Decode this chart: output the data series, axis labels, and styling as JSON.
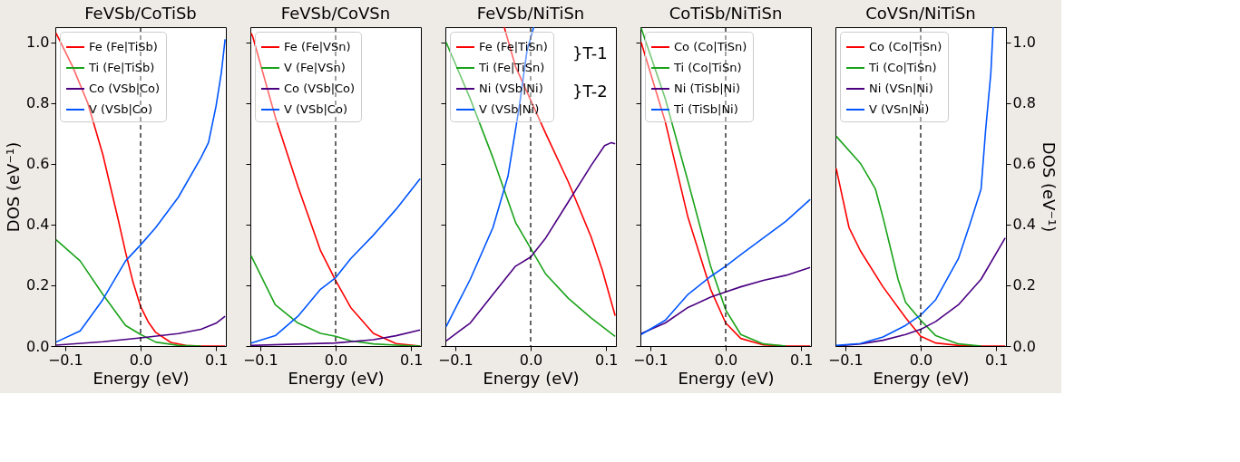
{
  "chart_data": [
    {
      "type": "line",
      "title": "FeVSb/CoTiSb",
      "xlabel": "Energy (eV)",
      "ylabel": "DOS (eV⁻¹)",
      "xlim": [
        -0.113,
        0.113
      ],
      "ylim": [
        0,
        1.05
      ],
      "xticks": [
        {
          "value": -0.1,
          "label": "−0.1"
        },
        {
          "value": 0,
          "label": "0.0"
        },
        {
          "value": 0.1,
          "label": "0.1"
        }
      ],
      "yticks": [
        {
          "value": 0,
          "label": "0.0"
        },
        0.2,
        0.4,
        0.6,
        0.8,
        {
          "value": 1,
          "label": "1.0"
        }
      ],
      "legend": "top left",
      "ref_lines": [
        {
          "axis": "x",
          "value": 0,
          "color": "#000000",
          "line_style": "dashed"
        }
      ],
      "series": [
        {
          "name": "Fe (Fe|TiSb)",
          "color": "#ff0000",
          "x": [
            -0.112,
            -0.09,
            -0.07,
            -0.05,
            -0.03,
            -0.02,
            -0.01,
            0,
            0.01,
            0.02,
            0.04,
            0.06,
            0.08,
            0.112
          ],
          "values": [
            1.03,
            0.92,
            0.8,
            0.63,
            0.42,
            0.31,
            0.21,
            0.13,
            0.08,
            0.045,
            0.012,
            0.002,
            0,
            0
          ]
        },
        {
          "name": "Ti (Fe|TiSb)",
          "color": "#1aa31a",
          "x": [
            -0.112,
            -0.08,
            -0.05,
            -0.02,
            0,
            0.02,
            0.05,
            0.08
          ],
          "values": [
            0.35,
            0.28,
            0.17,
            0.068,
            0.038,
            0.013,
            0.002,
            0
          ]
        },
        {
          "name": "Co (VSb|Co)",
          "color": "#4b0082",
          "x": [
            -0.112,
            -0.05,
            0,
            0.05,
            0.08,
            0.1,
            0.112
          ],
          "values": [
            0.003,
            0.014,
            0.027,
            0.041,
            0.055,
            0.075,
            0.098
          ]
        },
        {
          "name": "V (VSb|Co)",
          "color": "#0055ff",
          "x": [
            -0.112,
            -0.08,
            -0.05,
            -0.02,
            0,
            0.02,
            0.05,
            0.08,
            0.09,
            0.1,
            0.107,
            0.112
          ],
          "values": [
            0.013,
            0.05,
            0.153,
            0.28,
            0.333,
            0.39,
            0.49,
            0.62,
            0.67,
            0.79,
            0.9,
            1.01
          ]
        }
      ]
    },
    {
      "type": "line",
      "title": "FeVSb/CoVSn",
      "xlabel": "Energy (eV)",
      "xlim": [
        -0.113,
        0.113
      ],
      "ylim": [
        0,
        1.05
      ],
      "tick_labels": "x",
      "xticks": [
        {
          "value": -0.1,
          "label": "−0.1"
        },
        {
          "value": 0,
          "label": "0.0"
        },
        {
          "value": 0.1,
          "label": "0.1"
        }
      ],
      "yticks": [
        0,
        0.2,
        0.4,
        0.6,
        0.8,
        1
      ],
      "legend": "top left",
      "ref_lines": [
        {
          "axis": "x",
          "value": 0,
          "color": "#000000",
          "line_style": "dashed"
        }
      ],
      "series": [
        {
          "name": "Fe (Fe|VSn)",
          "color": "#ff0000",
          "x": [
            -0.112,
            -0.11,
            -0.08,
            -0.05,
            -0.02,
            0,
            0.02,
            0.05,
            0.08,
            0.112
          ],
          "values": [
            1.03,
            1.02,
            0.755,
            0.526,
            0.314,
            0.216,
            0.127,
            0.042,
            0.008,
            0
          ]
        },
        {
          "name": "V (Fe|VSn)",
          "color": "#1aa31a",
          "x": [
            -0.112,
            -0.08,
            -0.05,
            -0.02,
            0,
            0.02,
            0.05,
            0.08,
            0.112
          ],
          "values": [
            0.297,
            0.136,
            0.076,
            0.042,
            0.032,
            0.017,
            0.007,
            0.003,
            0
          ]
        },
        {
          "name": "Co (VSb|Co)",
          "color": "#4b0082",
          "x": [
            -0.112,
            0,
            0.05,
            0.08,
            0.112
          ],
          "values": [
            0.002,
            0.01,
            0.021,
            0.034,
            0.053
          ]
        },
        {
          "name": "V (VSb|Co)",
          "color": "#0055ff",
          "x": [
            -0.112,
            -0.08,
            -0.05,
            -0.02,
            0,
            0.02,
            0.05,
            0.08,
            0.112
          ],
          "values": [
            0.01,
            0.034,
            0.098,
            0.187,
            0.225,
            0.288,
            0.365,
            0.45,
            0.551
          ]
        }
      ]
    },
    {
      "type": "line",
      "title": "FeVSb/NiTiSn",
      "xlabel": "Energy (eV)",
      "xlim": [
        -0.113,
        0.113
      ],
      "ylim": [
        0,
        1.05
      ],
      "tick_labels": "x",
      "xticks": [
        {
          "value": -0.1,
          "label": "−0.1"
        },
        {
          "value": 0,
          "label": "0.0"
        },
        {
          "value": 0.1,
          "label": "0.1"
        }
      ],
      "yticks": [
        0,
        0.2,
        0.4,
        0.6,
        0.8,
        1
      ],
      "legend": "top left",
      "annotations": [
        "}T-1",
        "}T-2"
      ],
      "ref_lines": [
        {
          "axis": "x",
          "value": 0,
          "color": "#000000",
          "line_style": "dashed"
        }
      ],
      "series": [
        {
          "name": "Fe (Fe|TiSn)",
          "color": "#ff0000",
          "x": [
            -0.035,
            -0.02,
            0,
            0.02,
            0.05,
            0.08,
            0.095,
            0.112
          ],
          "values": [
            1.05,
            0.92,
            0.81,
            0.7,
            0.54,
            0.36,
            0.25,
            0.1
          ]
        },
        {
          "name": "Ti (Fe|TiSn)",
          "color": "#1aa31a",
          "x": [
            -0.112,
            -0.08,
            -0.05,
            -0.02,
            0,
            0.02,
            0.05,
            0.08,
            0.112
          ],
          "values": [
            1.0,
            0.814,
            0.62,
            0.407,
            0.322,
            0.237,
            0.157,
            0.093,
            0.032
          ]
        },
        {
          "name": "Ni (VSb|Ni)",
          "color": "#4b0082",
          "x": [
            -0.112,
            -0.08,
            -0.05,
            -0.02,
            0,
            0.02,
            0.05,
            0.08,
            0.098,
            0.107,
            0.112
          ],
          "values": [
            0.017,
            0.076,
            0.17,
            0.263,
            0.293,
            0.356,
            0.475,
            0.594,
            0.66,
            0.67,
            0.666
          ]
        },
        {
          "name": "V (VSb|Ni)",
          "color": "#0055ff",
          "x": [
            -0.112,
            -0.08,
            -0.05,
            -0.03,
            -0.015,
            -0.005,
            0.004
          ],
          "values": [
            0.064,
            0.22,
            0.39,
            0.56,
            0.79,
            0.97,
            1.05
          ]
        }
      ]
    },
    {
      "type": "line",
      "title": "CoTiSb/NiTiSn",
      "xlabel": "Energy (eV)",
      "xlim": [
        -0.113,
        0.113
      ],
      "ylim": [
        0,
        1.05
      ],
      "tick_labels": "x",
      "xticks": [
        {
          "value": -0.1,
          "label": "−0.1"
        },
        {
          "value": 0,
          "label": "0.0"
        },
        {
          "value": 0.1,
          "label": "0.1"
        }
      ],
      "yticks": [
        0,
        0.2,
        0.4,
        0.6,
        0.8,
        1
      ],
      "legend": "top left",
      "ref_lines": [
        {
          "axis": "x",
          "value": 0,
          "color": "#000000",
          "line_style": "dashed"
        }
      ],
      "series": [
        {
          "name": "Co (Co|TiSn)",
          "color": "#ff0000",
          "x": [
            -0.112,
            -0.08,
            -0.05,
            -0.02,
            0,
            0.02,
            0.05,
            0.08,
            0.112
          ],
          "values": [
            1.0,
            0.738,
            0.424,
            0.187,
            0.076,
            0.025,
            0.004,
            0,
            0
          ]
        },
        {
          "name": "Ti (Co|TiSn)",
          "color": "#1aa31a",
          "x": [
            -0.112,
            -0.08,
            -0.05,
            -0.02,
            0,
            0.02,
            0.05,
            0.08
          ],
          "values": [
            1.047,
            0.814,
            0.543,
            0.263,
            0.119,
            0.038,
            0.007,
            0
          ]
        },
        {
          "name": "Ni (TiSb|Ni)",
          "color": "#4b0082",
          "x": [
            -0.112,
            -0.08,
            -0.05,
            -0.02,
            0,
            0.02,
            0.05,
            0.08,
            0.112
          ],
          "values": [
            0.041,
            0.076,
            0.127,
            0.161,
            0.178,
            0.195,
            0.216,
            0.233,
            0.259
          ]
        },
        {
          "name": "Ti (TiSb|Ni)",
          "color": "#0055ff",
          "x": [
            -0.112,
            -0.08,
            -0.05,
            -0.02,
            0,
            0.02,
            0.05,
            0.08,
            0.112
          ],
          "values": [
            0.038,
            0.085,
            0.17,
            0.229,
            0.263,
            0.301,
            0.356,
            0.411,
            0.483
          ]
        }
      ]
    },
    {
      "type": "line",
      "title": "CoVSn/NiTiSn",
      "xlabel": "Energy (eV)",
      "y2label": "DOS (eV⁻¹)",
      "xlim": [
        -0.113,
        0.113
      ],
      "y2lim": [
        0,
        1.05
      ],
      "xticks": [
        {
          "value": -0.1,
          "label": "−0.1"
        },
        {
          "value": 0,
          "label": "0.0"
        },
        {
          "value": 0.1,
          "label": "0.1"
        }
      ],
      "y2ticks": [
        {
          "value": 0,
          "label": "0.0"
        },
        0.2,
        0.4,
        0.6,
        0.8,
        {
          "value": 1,
          "label": "1.0"
        }
      ],
      "legend": "top left",
      "ref_lines": [
        {
          "axis": "x",
          "value": 0,
          "color": "#000000",
          "line_style": "dashed"
        }
      ],
      "series": [
        {
          "name": "Co (Co|TiSn)",
          "color": "#ff0000",
          "axis": "y2",
          "x": [
            -0.112,
            -0.095,
            -0.08,
            -0.05,
            -0.02,
            0,
            0.02,
            0.05,
            0.08,
            0.112
          ],
          "values": [
            0.585,
            0.39,
            0.314,
            0.195,
            0.093,
            0.032,
            0.01,
            0.002,
            0,
            0
          ]
        },
        {
          "name": "Ti (Co|TiSn)",
          "color": "#1aa31a",
          "axis": "y2",
          "x": [
            -0.112,
            -0.08,
            -0.06,
            -0.05,
            -0.03,
            -0.02,
            0,
            0.02,
            0.05,
            0.08
          ],
          "values": [
            0.691,
            0.602,
            0.517,
            0.424,
            0.22,
            0.144,
            0.085,
            0.034,
            0.007,
            0
          ]
        },
        {
          "name": "Ni (VSn|Ni)",
          "color": "#4b0082",
          "axis": "y2",
          "x": [
            -0.112,
            -0.08,
            -0.05,
            -0.02,
            0,
            0.02,
            0.05,
            0.08,
            0.112
          ],
          "values": [
            0,
            0.007,
            0.019,
            0.038,
            0.055,
            0.081,
            0.136,
            0.22,
            0.356
          ]
        },
        {
          "name": "V (VSn|Ni)",
          "color": "#0055ff",
          "axis": "y2",
          "x": [
            -0.112,
            -0.08,
            -0.05,
            -0.02,
            0,
            0.02,
            0.05,
            0.065,
            0.08,
            0.086,
            0.093,
            0.096
          ],
          "values": [
            0.002,
            0.008,
            0.03,
            0.068,
            0.102,
            0.153,
            0.288,
            0.4,
            0.517,
            0.71,
            0.9,
            1.05
          ]
        }
      ]
    }
  ]
}
